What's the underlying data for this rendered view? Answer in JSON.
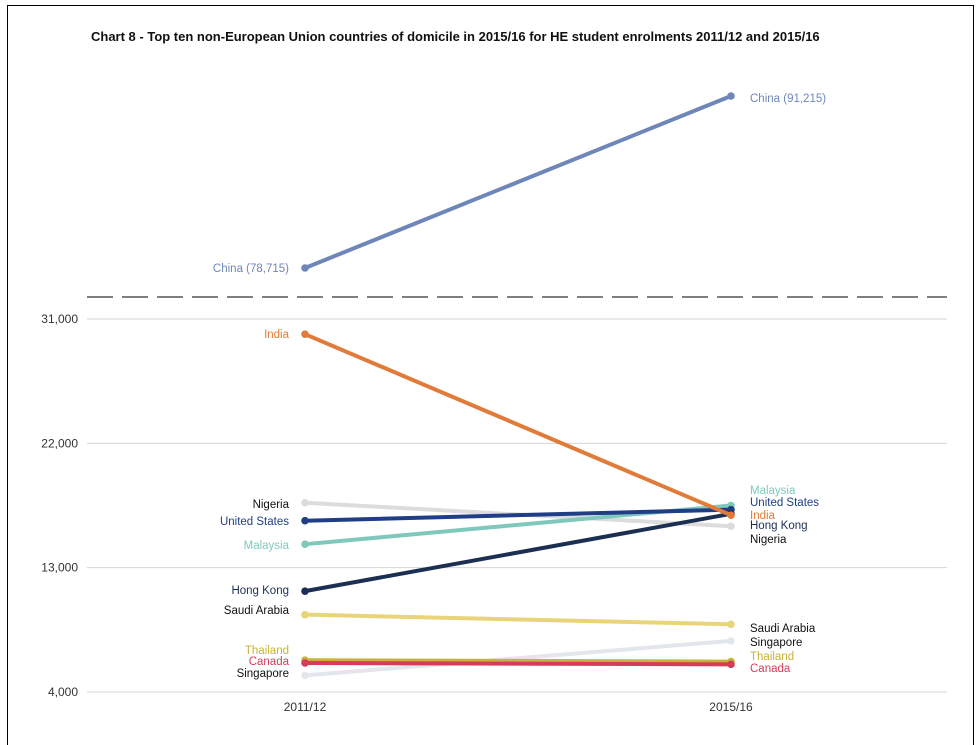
{
  "chart_data": {
    "type": "line",
    "title": "Chart 8 - Top ten non-European Union countries of domicile in 2015/16 for HE student enrolments 2011/12 and 2015/16",
    "x": [
      "2011/12",
      "2015/16"
    ],
    "ylim": [
      4000,
      31000
    ],
    "yticks": [
      4000,
      13000,
      22000,
      31000
    ],
    "ytick_labels": [
      "4,000",
      "13,000",
      "22,000",
      "31,000"
    ],
    "axis_break": true,
    "grid": true,
    "legend": "none",
    "series": [
      {
        "name": "China",
        "values": [
          78715,
          91215
        ],
        "color": "#6f87b8",
        "labels": [
          "China (78,715)",
          "China (91,215)"
        ],
        "broken_axis": true
      },
      {
        "name": "India",
        "values": [
          29900,
          16800
        ],
        "color": "#e07b39"
      },
      {
        "name": "Nigeria",
        "values": [
          17700,
          16000
        ],
        "color": "#dcdcdc"
      },
      {
        "name": "United States",
        "values": [
          16400,
          17200
        ],
        "color": "#1f3e86"
      },
      {
        "name": "Malaysia",
        "values": [
          14700,
          17500
        ],
        "color": "#7ec9bb"
      },
      {
        "name": "Hong Kong",
        "values": [
          11300,
          16900
        ],
        "color": "#1b2f52"
      },
      {
        "name": "Saudi Arabia",
        "values": [
          9600,
          8900
        ],
        "color": "#e8d57a"
      },
      {
        "name": "Thailand",
        "values": [
          6300,
          6200
        ],
        "color": "#c7b23a"
      },
      {
        "name": "Canada",
        "values": [
          6100,
          6000
        ],
        "color": "#d63c5a"
      },
      {
        "name": "Singapore",
        "values": [
          5200,
          7700
        ],
        "color": "#e3e6ec"
      }
    ],
    "label_colors": {
      "China": "#6f87b8",
      "India": "#e07b39",
      "Nigeria": "#111111",
      "United States": "#1f3e86",
      "Malaysia": "#7ec9bb",
      "Hong Kong": "#1b2f52",
      "Saudi Arabia": "#111111",
      "Thailand": "#c7b23a",
      "Canada": "#d63c5a",
      "Singapore": "#111111"
    }
  }
}
